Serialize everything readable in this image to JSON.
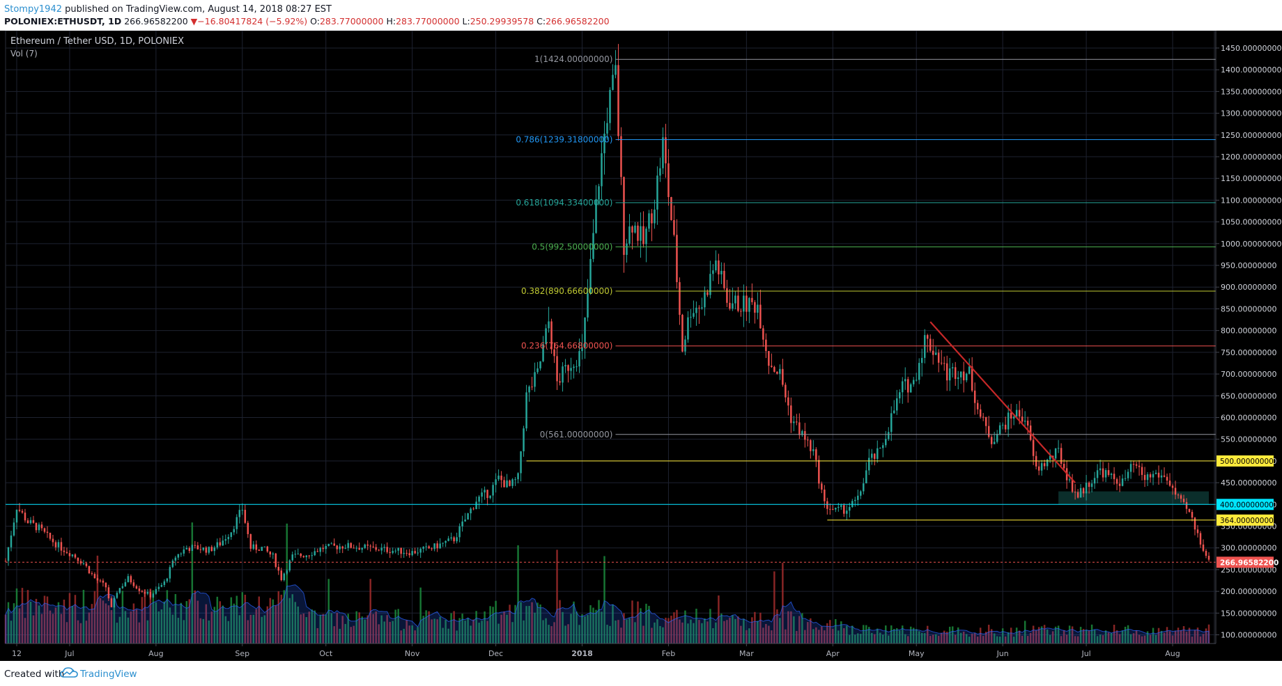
{
  "header": {
    "author": "Stompy1942",
    "published": " published on TradingView.com, August 14, 2018 08:27 EST",
    "symbol": "POLONIEX:ETHUSDT, 1D",
    "last": "266.96582200",
    "change_arrow": "▼",
    "change": "−16.80417824 (−5.92%)",
    "o_label": "O:",
    "o_value": "283.77000000",
    "h_label": "H:",
    "h_value": "283.77000000",
    "l_label": "L:",
    "l_value": "250.29939578",
    "c_label": "C:",
    "c_value": "266.96582200"
  },
  "footer": {
    "created": "Created with",
    "brand": "TradingView",
    "logo_icon": "tradingview-cloud-icon"
  },
  "chart_data": {
    "type": "candlestick",
    "title": "Ethereum / Tether USD, 1D, POLONIEX",
    "subtitle": "Vol (7)",
    "y_axis": {
      "ylim": [
        80,
        1490
      ],
      "ticks": [
        "100.00000000",
        "150.00000000",
        "200.00000000",
        "250.00000000",
        "300.00000000",
        "350.00000000",
        "400.00000000",
        "450.00000000",
        "500.00000000",
        "550.00000000",
        "600.00000000",
        "650.00000000",
        "700.00000000",
        "750.00000000",
        "800.00000000",
        "850.00000000",
        "900.00000000",
        "950.00000000",
        "1000.00000000",
        "1050.00000000",
        "1100.00000000",
        "1150.00000000",
        "1200.00000000",
        "1250.00000000",
        "1300.00000000",
        "1350.00000000",
        "1400.00000000",
        "1450.00000000"
      ],
      "position": "right"
    },
    "x_axis": {
      "range": [
        "2017-06-08",
        "2018-08-14"
      ],
      "ticks": [
        {
          "date": "2017-06-12",
          "label": "12",
          "bold": false
        },
        {
          "date": "2017-07-01",
          "label": "Jul",
          "bold": false
        },
        {
          "date": "2017-08-01",
          "label": "Aug",
          "bold": false
        },
        {
          "date": "2017-09-01",
          "label": "Sep",
          "bold": false
        },
        {
          "date": "2017-10-01",
          "label": "Oct",
          "bold": false
        },
        {
          "date": "2017-11-01",
          "label": "Nov",
          "bold": false
        },
        {
          "date": "2017-12-01",
          "label": "Dec",
          "bold": false
        },
        {
          "date": "2018-01-01",
          "label": "2018",
          "bold": true
        },
        {
          "date": "2018-02-01",
          "label": "Feb",
          "bold": false
        },
        {
          "date": "2018-03-01",
          "label": "Mar",
          "bold": false
        },
        {
          "date": "2018-04-01",
          "label": "Apr",
          "bold": false
        },
        {
          "date": "2018-05-01",
          "label": "May",
          "bold": false
        },
        {
          "date": "2018-06-01",
          "label": "Jun",
          "bold": false
        },
        {
          "date": "2018-07-01",
          "label": "Jul",
          "bold": false
        },
        {
          "date": "2018-08-01",
          "label": "Aug",
          "bold": false
        }
      ]
    },
    "price_path": [
      [
        "2017-06-08",
        270
      ],
      [
        "2017-06-12",
        395
      ],
      [
        "2017-06-16",
        360
      ],
      [
        "2017-06-20",
        345
      ],
      [
        "2017-06-24",
        320
      ],
      [
        "2017-06-28",
        300
      ],
      [
        "2017-07-02",
        285
      ],
      [
        "2017-07-06",
        265
      ],
      [
        "2017-07-10",
        230
      ],
      [
        "2017-07-14",
        210
      ],
      [
        "2017-07-16",
        160
      ],
      [
        "2017-07-18",
        200
      ],
      [
        "2017-07-22",
        230
      ],
      [
        "2017-07-26",
        205
      ],
      [
        "2017-07-30",
        190
      ],
      [
        "2017-08-04",
        220
      ],
      [
        "2017-08-08",
        280
      ],
      [
        "2017-08-12",
        300
      ],
      [
        "2017-08-16",
        300
      ],
      [
        "2017-08-20",
        295
      ],
      [
        "2017-08-24",
        310
      ],
      [
        "2017-08-28",
        340
      ],
      [
        "2017-09-01",
        390
      ],
      [
        "2017-09-04",
        300
      ],
      [
        "2017-09-08",
        300
      ],
      [
        "2017-09-12",
        280
      ],
      [
        "2017-09-15",
        230
      ],
      [
        "2017-09-19",
        280
      ],
      [
        "2017-09-24",
        285
      ],
      [
        "2017-09-30",
        300
      ],
      [
        "2017-10-08",
        305
      ],
      [
        "2017-10-16",
        300
      ],
      [
        "2017-10-24",
        295
      ],
      [
        "2017-11-01",
        290
      ],
      [
        "2017-11-08",
        300
      ],
      [
        "2017-11-16",
        320
      ],
      [
        "2017-11-24",
        410
      ],
      [
        "2017-11-29",
        430
      ],
      [
        "2017-12-02",
        460
      ],
      [
        "2017-12-06",
        440
      ],
      [
        "2017-12-09",
        460
      ],
      [
        "2017-12-12",
        650
      ],
      [
        "2017-12-16",
        700
      ],
      [
        "2017-12-20",
        820
      ],
      [
        "2017-12-23",
        680
      ],
      [
        "2017-12-27",
        720
      ],
      [
        "2018-01-01",
        750
      ],
      [
        "2018-01-04",
        950
      ],
      [
        "2018-01-07",
        1150
      ],
      [
        "2018-01-10",
        1300
      ],
      [
        "2018-01-13",
        1390
      ],
      [
        "2018-01-16",
        1000
      ],
      [
        "2018-01-19",
        1050
      ],
      [
        "2018-01-23",
        1000
      ],
      [
        "2018-01-27",
        1100
      ],
      [
        "2018-01-30",
        1230
      ],
      [
        "2018-02-03",
        1000
      ],
      [
        "2018-02-06",
        760
      ],
      [
        "2018-02-09",
        850
      ],
      [
        "2018-02-13",
        860
      ],
      [
        "2018-02-18",
        960
      ],
      [
        "2018-02-22",
        870
      ],
      [
        "2018-02-26",
        860
      ],
      [
        "2018-03-01",
        860
      ],
      [
        "2018-03-05",
        860
      ],
      [
        "2018-03-09",
        730
      ],
      [
        "2018-03-13",
        700
      ],
      [
        "2018-03-17",
        600
      ],
      [
        "2018-03-21",
        560
      ],
      [
        "2018-03-25",
        520
      ],
      [
        "2018-03-29",
        400
      ],
      [
        "2018-04-02",
        385
      ],
      [
        "2018-04-06",
        390
      ],
      [
        "2018-04-10",
        410
      ],
      [
        "2018-04-14",
        500
      ],
      [
        "2018-04-18",
        520
      ],
      [
        "2018-04-22",
        600
      ],
      [
        "2018-04-26",
        670
      ],
      [
        "2018-04-30",
        680
      ],
      [
        "2018-05-04",
        780
      ],
      [
        "2018-05-08",
        750
      ],
      [
        "2018-05-12",
        700
      ],
      [
        "2018-05-16",
        710
      ],
      [
        "2018-05-20",
        700
      ],
      [
        "2018-05-24",
        600
      ],
      [
        "2018-05-28",
        550
      ],
      [
        "2018-06-01",
        580
      ],
      [
        "2018-06-05",
        610
      ],
      [
        "2018-06-09",
        600
      ],
      [
        "2018-06-13",
        480
      ],
      [
        "2018-06-17",
        500
      ],
      [
        "2018-06-21",
        520
      ],
      [
        "2018-06-25",
        450
      ],
      [
        "2018-06-28",
        420
      ],
      [
        "2018-07-02",
        450
      ],
      [
        "2018-07-06",
        480
      ],
      [
        "2018-07-10",
        460
      ],
      [
        "2018-07-14",
        450
      ],
      [
        "2018-07-18",
        490
      ],
      [
        "2018-07-22",
        460
      ],
      [
        "2018-07-26",
        470
      ],
      [
        "2018-07-30",
        460
      ],
      [
        "2018-08-03",
        410
      ],
      [
        "2018-08-07",
        380
      ],
      [
        "2018-08-10",
        330
      ],
      [
        "2018-08-13",
        285
      ],
      [
        "2018-08-14",
        267
      ]
    ],
    "volume_ma_label": "Vol (7)",
    "fibonacci": {
      "start_date": "2018-01-13",
      "levels": [
        {
          "label": "1(1424.00000000)",
          "value": 1424,
          "color": "#9598a1"
        },
        {
          "label": "0.786(1239.31800000)",
          "value": 1239.318,
          "color": "#2196f3"
        },
        {
          "label": "0.618(1094.33400000)",
          "value": 1094.334,
          "color": "#26a69a"
        },
        {
          "label": "0.5(992.50000000)",
          "value": 992.5,
          "color": "#4caf50"
        },
        {
          "label": "0.382(890.66600000)",
          "value": 890.666,
          "color": "#c0ca33"
        },
        {
          "label": "0.236(764.66800000)",
          "value": 764.668,
          "color": "#ef5350"
        },
        {
          "label": "0(561.00000000)",
          "value": 561,
          "color": "#9598a1"
        }
      ]
    },
    "horizontal_lines": [
      {
        "value": 500,
        "label": "500.00000000",
        "color": "#ffeb3b",
        "text_color": "#000000",
        "from_date": "2017-12-12"
      },
      {
        "value": 400,
        "label": "400.00000000",
        "color": "#00e5ff",
        "text_color": "#000000",
        "from_date": "2017-06-08"
      },
      {
        "value": 364,
        "label": "364.00000000",
        "color": "#ffeb3b",
        "text_color": "#000000",
        "from_date": "2018-03-30"
      },
      {
        "value": 266.965822,
        "label": "266.96582200",
        "color": "#ef5350",
        "text_color": "#ffffff",
        "dashed": true,
        "from_date": "2017-06-08"
      }
    ],
    "trendline": {
      "from": [
        "2018-05-06",
        820
      ],
      "to": [
        "2018-06-27",
        450
      ],
      "color": "#c62828"
    },
    "zone": {
      "from_date": "2018-06-21",
      "to_date": "2018-08-14",
      "low": 400,
      "high": 430,
      "color": "#26a69a"
    },
    "colors": {
      "up": "#26a69a",
      "down": "#ef5350",
      "up_vol": "#1b8a3c",
      "down_vol": "#a02b2b",
      "grid": "#1e2230"
    }
  }
}
